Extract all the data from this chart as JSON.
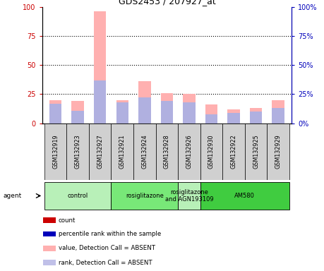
{
  "title": "GDS2453 / 207927_at",
  "samples": [
    "GSM132919",
    "GSM132923",
    "GSM132927",
    "GSM132921",
    "GSM132924",
    "GSM132928",
    "GSM132926",
    "GSM132930",
    "GSM132922",
    "GSM132925",
    "GSM132929"
  ],
  "pink_bars": [
    20,
    19,
    96,
    20,
    36,
    26,
    25,
    16,
    12,
    13,
    20
  ],
  "blue_bars": [
    17,
    11,
    37,
    18,
    22,
    19,
    18,
    8,
    9,
    10,
    13
  ],
  "groups": [
    {
      "label": "control",
      "start": 0,
      "end": 3,
      "color": "#b8f0b8"
    },
    {
      "label": "rosiglitazone",
      "start": 3,
      "end": 6,
      "color": "#78e878"
    },
    {
      "label": "rosiglitazone\nand AGN193109",
      "start": 6,
      "end": 7,
      "color": "#b8f0b8"
    },
    {
      "label": "AM580",
      "start": 7,
      "end": 11,
      "color": "#40cc40"
    }
  ],
  "ylim": [
    0,
    100
  ],
  "yticks": [
    0,
    25,
    50,
    75,
    100
  ],
  "bar_width": 0.55,
  "pink_color": "#ffb0b0",
  "blue_color": "#b0b0e0",
  "red_color": "#cc0000",
  "blue_dark": "#0000bb",
  "bg_chart": "#ffffff",
  "bg_sample": "#d0d0d0",
  "legend_items": [
    {
      "color": "#cc0000",
      "label": "count"
    },
    {
      "color": "#0000bb",
      "label": "percentile rank within the sample"
    },
    {
      "color": "#ffb0b0",
      "label": "value, Detection Call = ABSENT"
    },
    {
      "color": "#c0c0e8",
      "label": "rank, Detection Call = ABSENT"
    }
  ]
}
